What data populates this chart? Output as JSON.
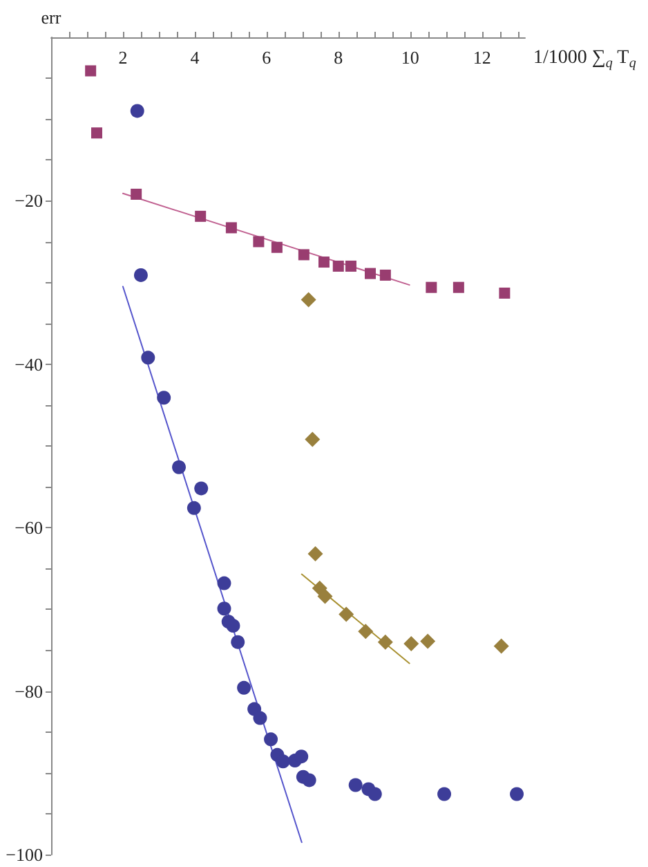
{
  "chart_data": {
    "type": "scatter",
    "xlabel": "1/1000 ∑$_{q}$ T$_{q}$",
    "ylabel": "err",
    "xlim": [
      0,
      13.2
    ],
    "ylim": [
      -100,
      0
    ],
    "xticks": [
      {
        "value": 0.5,
        "label": null
      },
      {
        "value": 1,
        "label": null
      },
      {
        "value": 1.5,
        "label": null
      },
      2,
      {
        "value": 2.5,
        "label": null
      },
      {
        "value": 3,
        "label": null
      },
      {
        "value": 3.5,
        "label": null
      },
      4,
      {
        "value": 4.5,
        "label": null
      },
      {
        "value": 5,
        "label": null
      },
      {
        "value": 5.5,
        "label": null
      },
      6,
      {
        "value": 6.5,
        "label": null
      },
      {
        "value": 7,
        "label": null
      },
      {
        "value": 7.5,
        "label": null
      },
      8,
      {
        "value": 8.5,
        "label": null
      },
      {
        "value": 9,
        "label": null
      },
      {
        "value": 9.5,
        "label": null
      },
      10,
      {
        "value": 10.5,
        "label": null
      },
      {
        "value": 11,
        "label": null
      },
      {
        "value": 11.5,
        "label": null
      },
      12,
      {
        "value": 12.5,
        "label": null
      },
      {
        "value": 13,
        "label": null
      }
    ],
    "yticks": [
      {
        "value": -5,
        "label": null
      },
      {
        "value": -10,
        "label": null
      },
      {
        "value": -15,
        "label": null
      },
      {
        "value": -20,
        "label": "−20"
      },
      {
        "value": -25,
        "label": null
      },
      {
        "value": -30,
        "label": null
      },
      {
        "value": -35,
        "label": null
      },
      {
        "value": -40,
        "label": "−40"
      },
      {
        "value": -45,
        "label": null
      },
      {
        "value": -50,
        "label": null
      },
      {
        "value": -55,
        "label": null
      },
      {
        "value": -60,
        "label": "−60"
      },
      {
        "value": -65,
        "label": null
      },
      {
        "value": -70,
        "label": null
      },
      {
        "value": -75,
        "label": null
      },
      {
        "value": -80,
        "label": "−80"
      },
      {
        "value": -85,
        "label": null
      },
      {
        "value": -90,
        "label": null
      },
      {
        "value": -95,
        "label": null
      },
      {
        "value": -100,
        "label": "−100"
      }
    ],
    "grid": false,
    "series": [
      {
        "type": "scatter",
        "marker": "square",
        "color": "#993d70",
        "x": [
          1.1,
          1.27,
          2.37,
          4.16,
          5.02,
          5.78,
          6.29,
          7.04,
          7.6,
          8.0,
          8.35,
          8.89,
          9.31,
          10.59,
          11.35,
          12.63
        ],
        "values": [
          -4.1,
          -11.7,
          -19.2,
          -21.9,
          -23.3,
          -25.0,
          -25.7,
          -26.6,
          -27.5,
          -28.0,
          -28.0,
          -28.9,
          -29.1,
          -30.6,
          -30.6,
          -31.3
        ]
      },
      {
        "type": "scatter",
        "marker": "circle",
        "color": "#3d3d99",
        "x": [
          2.4,
          2.5,
          2.7,
          3.14,
          3.56,
          4.18,
          3.98,
          4.82,
          4.82,
          4.94,
          5.07,
          5.2,
          5.37,
          5.66,
          5.82,
          6.12,
          6.3,
          6.46,
          6.79,
          6.97,
          7.02,
          7.19,
          8.48,
          8.84,
          9.02,
          10.95,
          12.97
        ],
        "values": [
          -9.0,
          -29.1,
          -39.2,
          -44.1,
          -52.6,
          -55.2,
          -57.6,
          -66.8,
          -69.9,
          -71.5,
          -72.0,
          -74.0,
          -79.6,
          -82.2,
          -83.3,
          -85.9,
          -87.8,
          -88.6,
          -88.5,
          -88.0,
          -90.5,
          -90.9,
          -91.5,
          -92.0,
          -92.6,
          -92.6,
          -92.6
        ]
      },
      {
        "type": "scatter",
        "marker": "diamond",
        "color": "#99803d",
        "x": [
          7.17,
          7.28,
          7.36,
          7.48,
          7.63,
          8.22,
          8.76,
          9.31,
          10.03,
          10.49,
          12.54
        ],
        "values": [
          -32.1,
          -49.2,
          -63.2,
          -67.4,
          -68.4,
          -70.6,
          -72.7,
          -74.0,
          -74.2,
          -73.9,
          -74.5
        ]
      },
      {
        "type": "line",
        "marker": "none",
        "line_style": "solid",
        "color": "#c06090",
        "x": [
          2.0,
          9.98
        ],
        "values": [
          -19.1,
          -30.3
        ]
      },
      {
        "type": "line",
        "marker": "none",
        "line_style": "solid",
        "color": "#5555cc",
        "x": [
          2.0,
          6.98
        ],
        "values": [
          -30.5,
          -98.5
        ]
      },
      {
        "type": "line",
        "marker": "none",
        "line_style": "solid",
        "color": "#a89030",
        "x": [
          6.98,
          9.98
        ],
        "values": [
          -65.7,
          -76.6
        ]
      }
    ]
  }
}
